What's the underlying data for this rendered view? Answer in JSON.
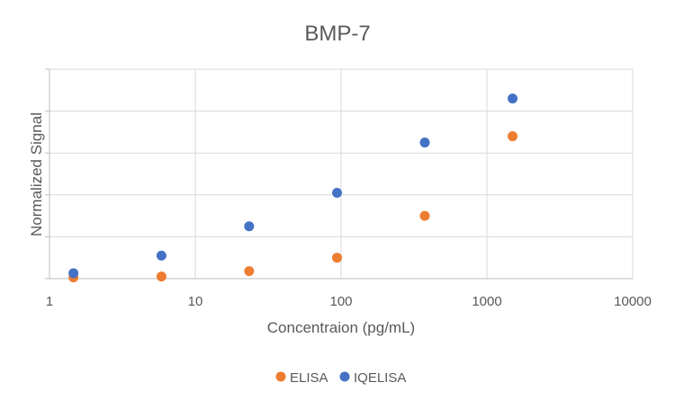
{
  "chart_data": {
    "type": "scatter",
    "title": "BMP-7",
    "xlabel": "Concentraion (pg/mL)",
    "ylabel": "Normalized Signal",
    "x_scale": "log",
    "xlim": [
      1,
      10000
    ],
    "ylim": [
      0,
      5
    ],
    "x_ticks": [
      "1",
      "10",
      "100",
      "1000",
      "10000"
    ],
    "grid": true,
    "legend_position": "bottom",
    "series": [
      {
        "name": "ELISA",
        "color": "#ED7D31",
        "x": [
          1.46,
          5.86,
          23.4,
          93.8,
          375,
          1500
        ],
        "y": [
          0.03,
          0.05,
          0.18,
          0.5,
          1.5,
          3.4
        ]
      },
      {
        "name": "IQELISA",
        "color": "#4472C4",
        "x": [
          1.46,
          5.86,
          23.4,
          93.8,
          375,
          1500
        ],
        "y": [
          0.13,
          0.55,
          1.25,
          2.05,
          3.25,
          4.3
        ]
      }
    ]
  }
}
